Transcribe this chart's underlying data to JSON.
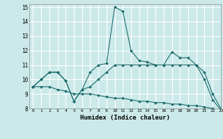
{
  "title": "",
  "xlabel": "Humidex (Indice chaleur)",
  "xlim": [
    -0.5,
    23
  ],
  "ylim": [
    8,
    15.2
  ],
  "yticks": [
    8,
    9,
    10,
    11,
    12,
    13,
    14,
    15
  ],
  "xticks": [
    0,
    1,
    2,
    3,
    4,
    5,
    6,
    7,
    8,
    9,
    10,
    11,
    12,
    13,
    14,
    15,
    16,
    17,
    18,
    19,
    20,
    21,
    22,
    23
  ],
  "bg_color": "#cce9e9",
  "line_color": "#1a6b6b",
  "grid_color": "#ffffff",
  "series": [
    [
      9.5,
      10.0,
      10.5,
      10.5,
      9.9,
      8.5,
      9.3,
      10.5,
      11.0,
      11.1,
      15.0,
      14.7,
      12.0,
      11.3,
      11.2,
      11.0,
      11.0,
      11.9,
      11.5,
      11.5,
      11.0,
      10.0,
      8.6,
      7.9
    ],
    [
      9.5,
      10.0,
      10.5,
      10.5,
      9.9,
      8.5,
      9.3,
      9.5,
      10.0,
      10.5,
      11.0,
      11.0,
      11.0,
      11.0,
      11.0,
      11.0,
      11.0,
      11.0,
      11.0,
      11.0,
      11.0,
      10.5,
      9.0,
      8.0
    ],
    [
      9.5,
      9.5,
      9.5,
      9.3,
      9.2,
      9.0,
      9.0,
      9.0,
      8.9,
      8.8,
      8.7,
      8.7,
      8.6,
      8.5,
      8.5,
      8.4,
      8.4,
      8.3,
      8.3,
      8.2,
      8.2,
      8.1,
      8.0,
      7.9
    ]
  ]
}
